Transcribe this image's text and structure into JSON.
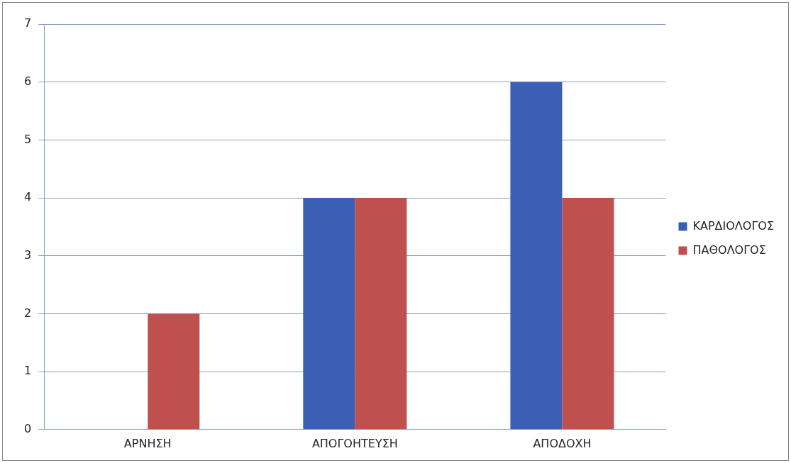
{
  "chart_data": {
    "type": "bar",
    "categories": [
      "ΑΡΝΗΣΗ",
      "ΑΠΟΓΟΗΤΕΥΣΗ",
      "ΑΠΟΔΟΧΗ"
    ],
    "series": [
      {
        "name": "ΚΑΡΔΙΟΛΟΓΟΣ",
        "color": "#3a5fb4",
        "values": [
          0,
          4,
          6
        ]
      },
      {
        "name": "ΠΑΘΟΛΟΓΟΣ",
        "color": "#c0504d",
        "values": [
          2,
          4,
          4
        ]
      }
    ],
    "ylim": [
      0,
      7
    ],
    "yticks": [
      0,
      1,
      2,
      3,
      4,
      5,
      6,
      7
    ],
    "grid": "y",
    "legend": "right"
  }
}
